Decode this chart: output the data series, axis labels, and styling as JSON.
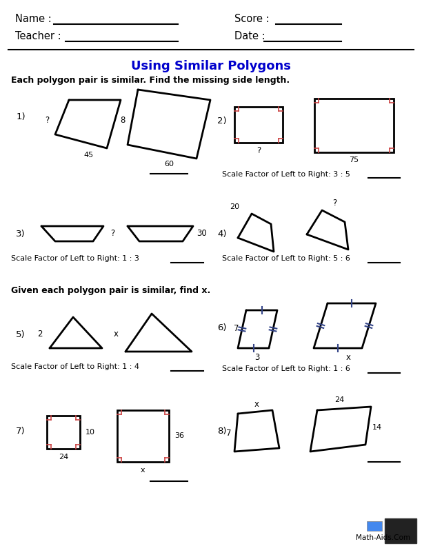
{
  "title": "Using Similar Polygons",
  "instruction1": "Each polygon pair is similar. Find the missing side length.",
  "instruction2": "Given each polygon pair is similar, find x.",
  "bg_color": "#ffffff",
  "title_color": "#0000cc",
  "text_color": "#000000",
  "header": {
    "name_label": "Name :",
    "teacher_label": "Teacher :",
    "score_label": "Score :",
    "date_label": "Date :"
  },
  "font": "DejaVu Sans"
}
